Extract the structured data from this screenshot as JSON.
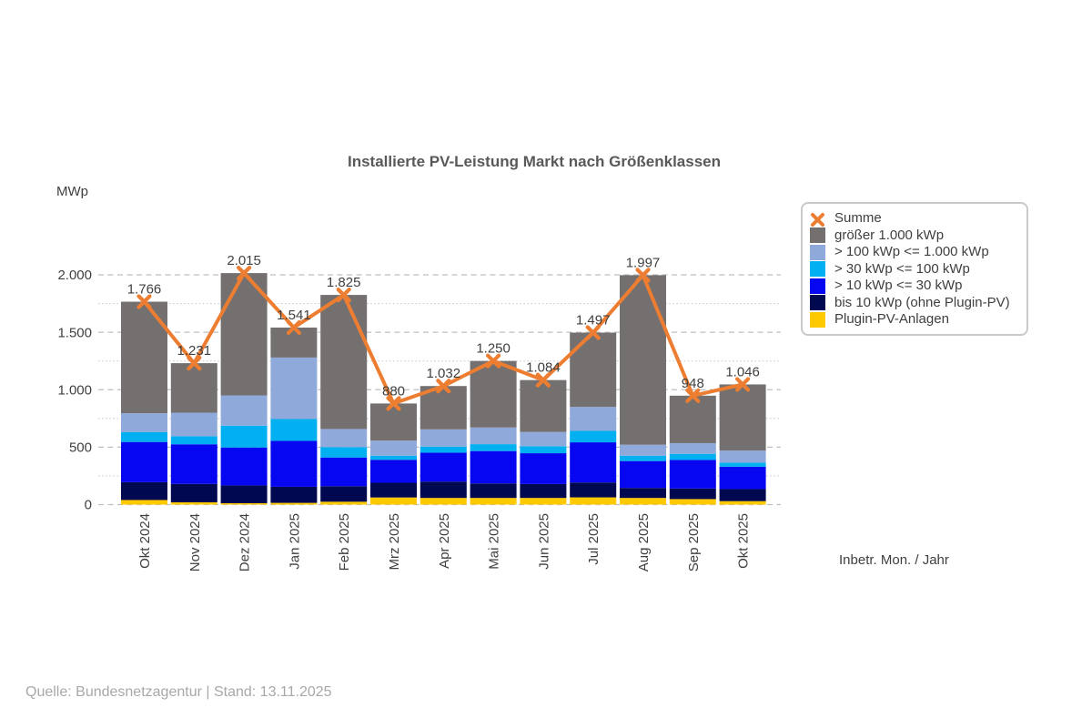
{
  "chart": {
    "title": "Installierte PV-Leistung Markt nach Größenklassen",
    "y_unit": "MWp",
    "x_axis_title": "Inbetr. Mon. / Jahr"
  },
  "footer": {
    "source": "Quelle: Bundesnetzagentur | Stand: 13.11.2025"
  },
  "colors": {
    "summe_line": "#ED7D31",
    "groesser_1000": "#757070",
    "kwp_100_1000": "#8FA9DB",
    "kwp_30_100": "#00B0F0",
    "kwp_10_30": "#0606F0",
    "bis_10": "#000850",
    "plugin_pv": "#FFC900",
    "grid_major": "#BFBFBF",
    "grid_minor": "#CCCCCC",
    "label_text": "#3F3F3F",
    "title_text": "#595959",
    "source_text": "#A8A8A8"
  },
  "legend": {
    "items": [
      {
        "label": "Summe",
        "type": "line-marker",
        "color": "#ED7D31"
      },
      {
        "label": "größer 1.000 kWp",
        "type": "swatch",
        "color": "#757070"
      },
      {
        "label": "> 100 kWp <= 1.000 kWp",
        "type": "swatch",
        "color": "#8FA9DB"
      },
      {
        "label": "> 30 kWp <= 100 kWp",
        "type": "swatch",
        "color": "#00B0F0"
      },
      {
        "label": "> 10 kWp <= 30 kWp",
        "type": "swatch",
        "color": "#0606F0"
      },
      {
        "label": "bis 10 kWp (ohne Plugin-PV)",
        "type": "swatch",
        "color": "#000850"
      },
      {
        "label": "Plugin-PV-Anlagen",
        "type": "swatch",
        "color": "#FFC900"
      }
    ]
  },
  "chart_data": {
    "type": "bar",
    "subtype": "stacked-bars-with-line",
    "title": "Installierte PV-Leistung Markt nach Größenklassen",
    "xlabel": "Inbetr. Mon. / Jahr",
    "ylabel": "MWp",
    "ylim": [
      0,
      2000
    ],
    "yticks": [
      0,
      500,
      1000,
      1500,
      2000
    ],
    "ytick_labels": [
      "0",
      "500",
      "1.000",
      "1.500",
      "2.000"
    ],
    "minor_yticks": [
      250,
      750,
      1250,
      1750
    ],
    "grid": true,
    "legend_position": "right",
    "categories": [
      "Okt 2024",
      "Nov 2024",
      "Dez 2024",
      "Jan 2025",
      "Feb 2025",
      "Mrz 2025",
      "Apr 2025",
      "Mai 2025",
      "Jun 2025",
      "Jul 2025",
      "Aug 2025",
      "Sep 2025",
      "Okt 2025"
    ],
    "series": [
      {
        "name": "Plugin-PV-Anlagen",
        "color": "#FFC900",
        "values": [
          40,
          20,
          12,
          15,
          25,
          62,
          58,
          58,
          58,
          63,
          58,
          48,
          30
        ]
      },
      {
        "name": "bis 10 kWp (ohne Plugin-PV)",
        "color": "#000850",
        "values": [
          155,
          160,
          155,
          140,
          135,
          128,
          142,
          126,
          121,
          129,
          87,
          92,
          105
        ]
      },
      {
        "name": "> 10 kWp <= 30 kWp",
        "color": "#0606F0",
        "values": [
          350,
          345,
          330,
          400,
          250,
          200,
          252,
          282,
          268,
          350,
          234,
          249,
          195
        ]
      },
      {
        "name": "> 30 kWp <= 100 kWp",
        "color": "#00B0F0",
        "values": [
          85,
          70,
          190,
          190,
          90,
          35,
          53,
          60,
          61,
          100,
          47,
          53,
          35
        ]
      },
      {
        "name": "> 100 kWp <= 1.000 kWp",
        "color": "#8FA9DB",
        "values": [
          165,
          205,
          263,
          535,
          158,
          132,
          150,
          145,
          124,
          208,
          95,
          93,
          105
        ]
      },
      {
        "name": "größer 1.000 kWp",
        "color": "#757070",
        "values": [
          971,
          431,
          1065,
          261,
          1167,
          323,
          377,
          579,
          452,
          647,
          1476,
          413,
          576
        ]
      }
    ],
    "line_series": {
      "name": "Summe",
      "color": "#ED7D31",
      "values": [
        1766,
        1231,
        2015,
        1541,
        1825,
        880,
        1032,
        1250,
        1084,
        1497,
        1997,
        948,
        1046
      ],
      "labels": [
        "1.766",
        "1.231",
        "2.015",
        "1.541",
        "1.825",
        "880",
        "1.032",
        "1.250",
        "1.084",
        "1.497",
        "1.997",
        "948",
        "1.046"
      ]
    }
  }
}
